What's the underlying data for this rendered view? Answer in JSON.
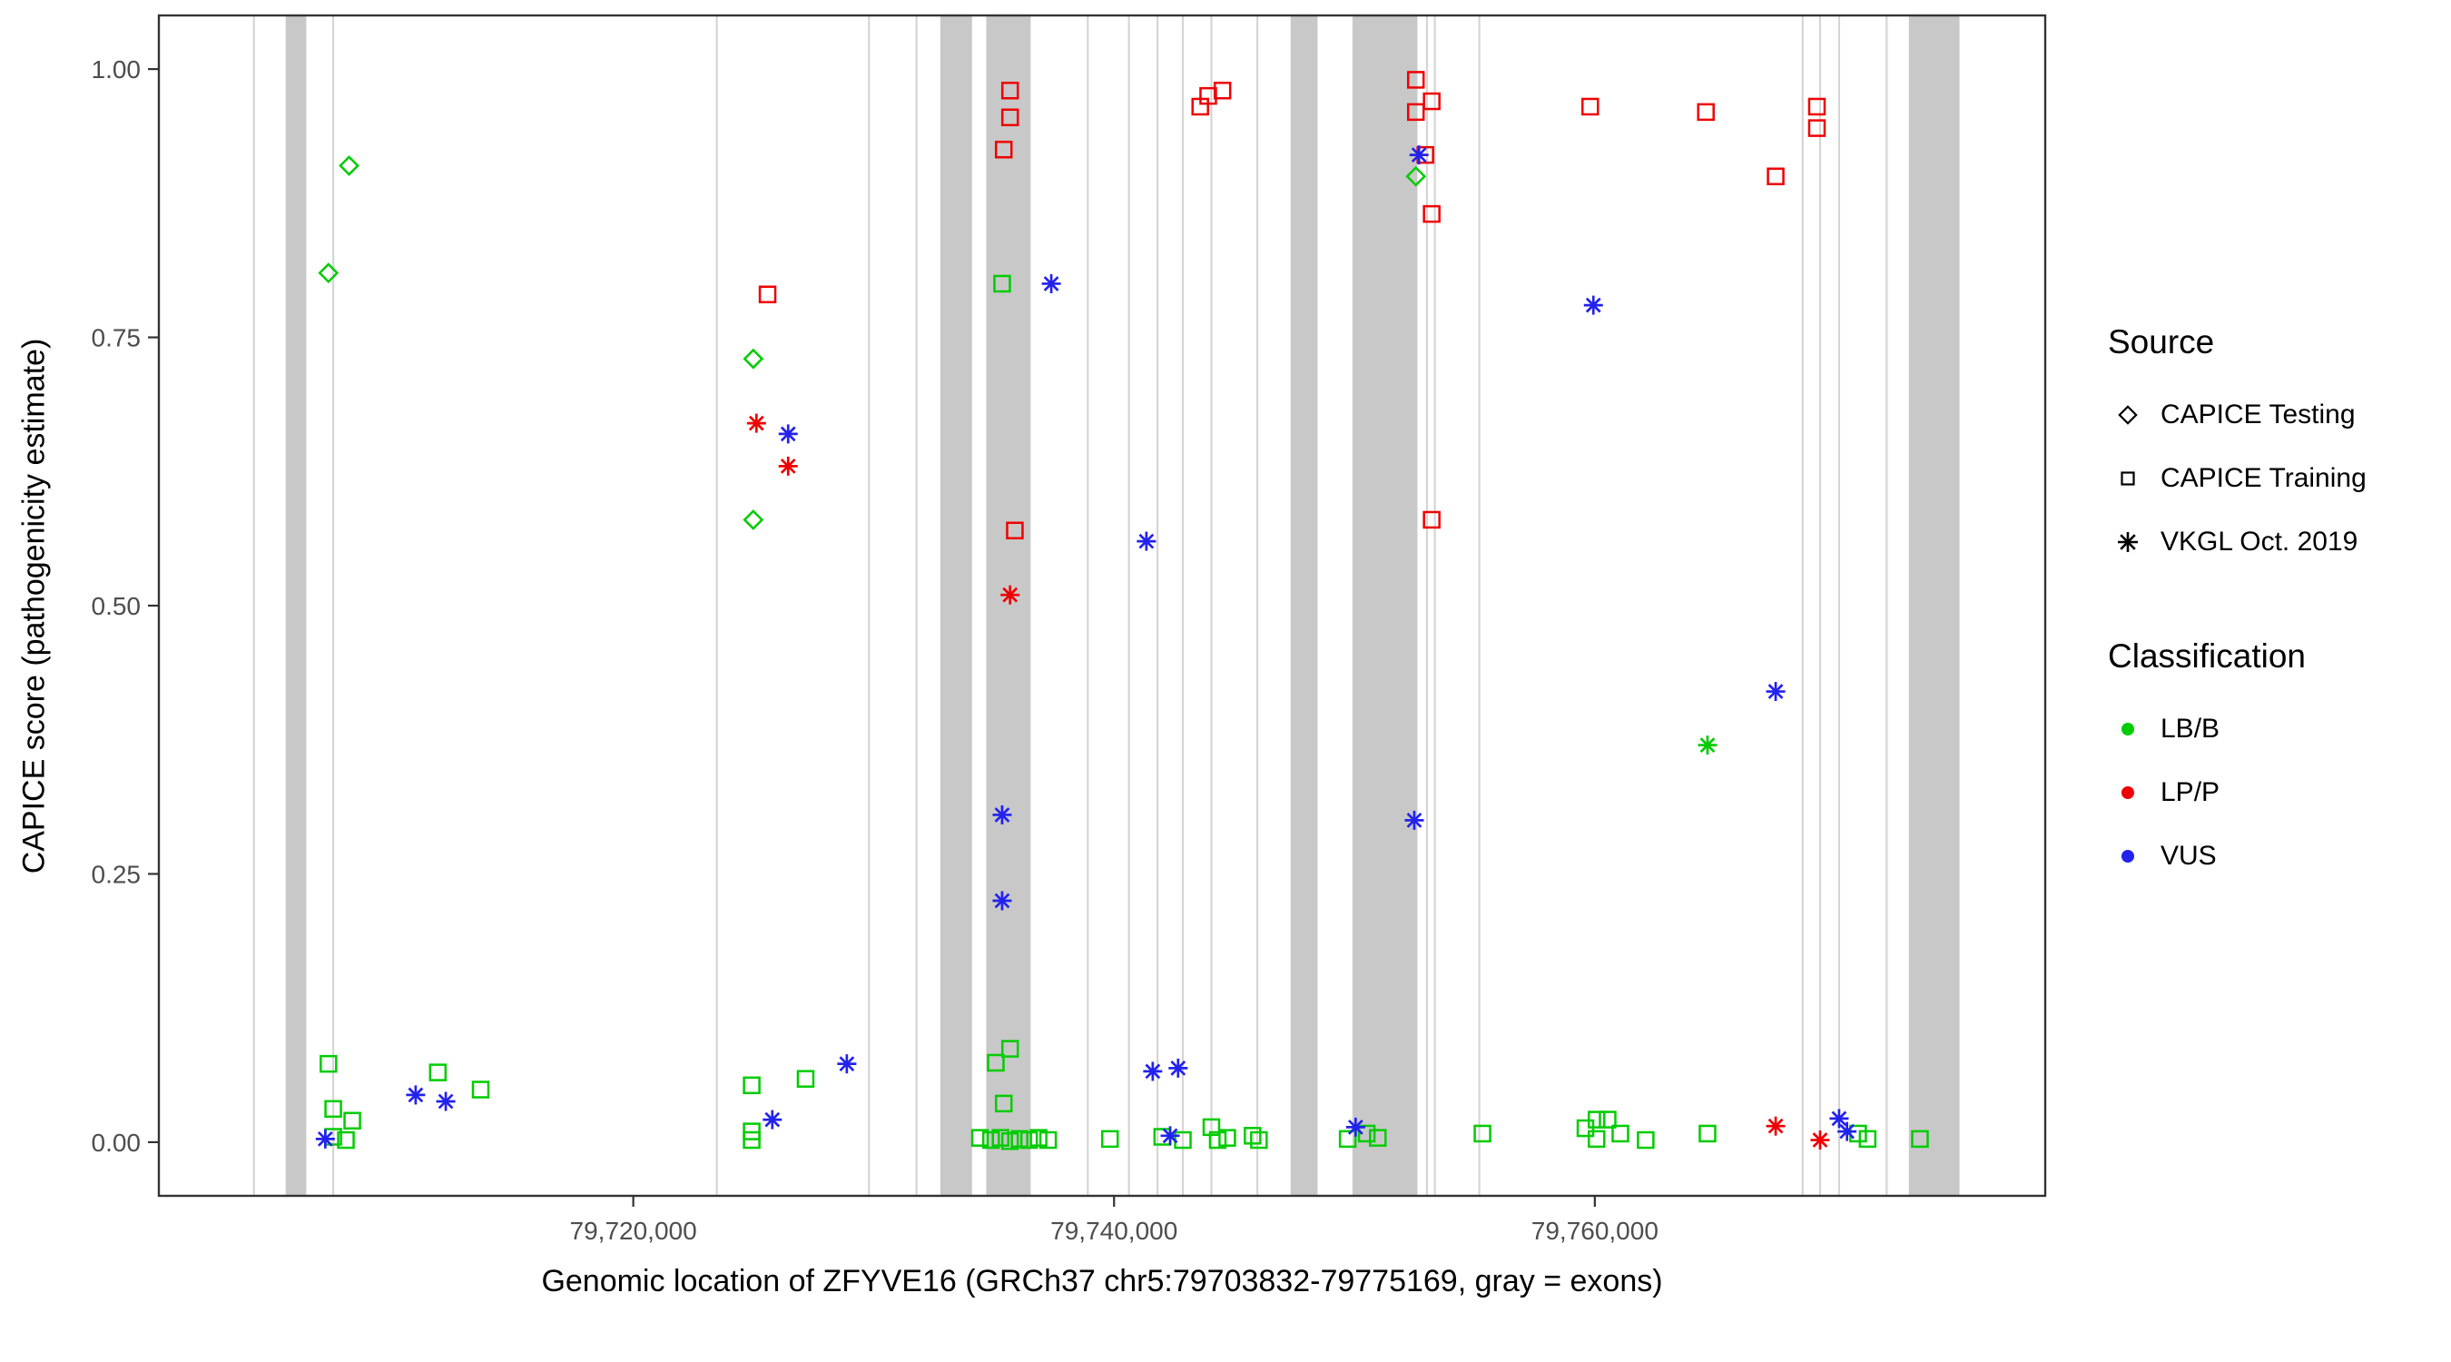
{
  "chart_data": {
    "type": "scatter",
    "title": "",
    "xlabel": "Genomic location of ZFYVE16 (GRCh37 chr5:79703832-79775169, gray = exons)",
    "ylabel": "CAPICE score (pathogenicity estimate)",
    "xlim": [
      79700265,
      79778736
    ],
    "ylim": [
      -0.05,
      1.05
    ],
    "grid": false,
    "exon_color": "#C8C8C8",
    "boundary_line_color": "#D5D5D5",
    "x_ticks": [
      {
        "value": 79720000,
        "label": "79,720,000"
      },
      {
        "value": 79740000,
        "label": "79,740,000"
      },
      {
        "value": 79760000,
        "label": "79,760,000"
      }
    ],
    "y_ticks": [
      {
        "value": 0.0,
        "label": "0.00"
      },
      {
        "value": 0.25,
        "label": "0.25"
      },
      {
        "value": 0.5,
        "label": "0.50"
      },
      {
        "value": 0.75,
        "label": "0.75"
      },
      {
        "value": 1.0,
        "label": "1.00"
      }
    ],
    "exons": [
      [
        79705540,
        79706397
      ],
      [
        79732773,
        79734092
      ],
      [
        79734685,
        79736532
      ],
      [
        79747346,
        79748467
      ],
      [
        79749917,
        79752621
      ],
      [
        79773063,
        79775169
      ]
    ],
    "boundary_lines": [
      79704221,
      79707518,
      79723476,
      79729806,
      79731784,
      79738906,
      79740620,
      79741807,
      79742862,
      79744049,
      79745961,
      79753017,
      79753346,
      79755193,
      79768645,
      79769370,
      79770161,
      79772140
    ],
    "series": [
      {
        "source": "CAPICE Testing",
        "classification": "LB/B",
        "shape": "diamond",
        "color": "#00CC00",
        "points": [
          [
            79708178,
            0.91
          ],
          [
            79707320,
            0.81
          ],
          [
            79724993,
            0.73
          ],
          [
            79724993,
            0.58
          ],
          [
            79752555,
            0.9
          ]
        ]
      },
      {
        "source": "CAPICE Training",
        "classification": "LB/B",
        "shape": "square",
        "color": "#00CC00",
        "points": [
          [
            79707320,
            0.073
          ],
          [
            79707518,
            0.031
          ],
          [
            79708310,
            0.02
          ],
          [
            79707518,
            0.005
          ],
          [
            79708046,
            0.002
          ],
          [
            79711870,
            0.065
          ],
          [
            79713651,
            0.049
          ],
          [
            79724927,
            0.053
          ],
          [
            79727169,
            0.059
          ],
          [
            79724927,
            0.01
          ],
          [
            79724927,
            0.002
          ],
          [
            79735345,
            0.8
          ],
          [
            79735675,
            0.087
          ],
          [
            79735081,
            0.074
          ],
          [
            79735411,
            0.036
          ],
          [
            79734421,
            0.004
          ],
          [
            79734883,
            0.002
          ],
          [
            79735279,
            0.004
          ],
          [
            79735675,
            0.001
          ],
          [
            79736070,
            0.003
          ],
          [
            79736466,
            0.002
          ],
          [
            79736862,
            0.004
          ],
          [
            79737257,
            0.002
          ],
          [
            79739829,
            0.003
          ],
          [
            79742005,
            0.005
          ],
          [
            79742862,
            0.002
          ],
          [
            79744049,
            0.014
          ],
          [
            79744313,
            0.002
          ],
          [
            79744708,
            0.004
          ],
          [
            79745763,
            0.006
          ],
          [
            79746027,
            0.002
          ],
          [
            79749720,
            0.003
          ],
          [
            79750511,
            0.008
          ],
          [
            79750972,
            0.004
          ],
          [
            79755325,
            0.008
          ],
          [
            79759610,
            0.013
          ],
          [
            79760072,
            0.021
          ],
          [
            79760533,
            0.021
          ],
          [
            79760072,
            0.003
          ],
          [
            79761061,
            0.008
          ],
          [
            79762116,
            0.002
          ],
          [
            79764687,
            0.008
          ],
          [
            79770952,
            0.008
          ],
          [
            79771347,
            0.003
          ],
          [
            79773524,
            0.003
          ]
        ]
      },
      {
        "source": "CAPICE Training",
        "classification": "LP/P",
        "shape": "square",
        "color": "#EE0000",
        "points": [
          [
            79725586,
            0.79
          ],
          [
            79735675,
            0.98
          ],
          [
            79735675,
            0.955
          ],
          [
            79735411,
            0.925
          ],
          [
            79735873,
            0.57
          ],
          [
            79743917,
            0.975
          ],
          [
            79744510,
            0.98
          ],
          [
            79743587,
            0.965
          ],
          [
            79752555,
            0.99
          ],
          [
            79752555,
            0.96
          ],
          [
            79753214,
            0.97
          ],
          [
            79752950,
            0.92
          ],
          [
            79753214,
            0.865
          ],
          [
            79753214,
            0.58
          ],
          [
            79759808,
            0.965
          ],
          [
            79764621,
            0.96
          ],
          [
            79769238,
            0.965
          ],
          [
            79769238,
            0.945
          ],
          [
            79767523,
            0.9
          ]
        ]
      },
      {
        "source": "VKGL Oct. 2019",
        "classification": "VUS",
        "shape": "asterisk",
        "color": "#2222EE",
        "points": [
          [
            79726443,
            0.66
          ],
          [
            79737389,
            0.8
          ],
          [
            79741345,
            0.56
          ],
          [
            79752687,
            0.92
          ],
          [
            79759940,
            0.78
          ],
          [
            79767523,
            0.42
          ],
          [
            79752489,
            0.3
          ],
          [
            79735345,
            0.305
          ],
          [
            79735345,
            0.225
          ],
          [
            79728883,
            0.073
          ],
          [
            79742664,
            0.069
          ],
          [
            79741609,
            0.066
          ],
          [
            79710947,
            0.044
          ],
          [
            79712200,
            0.038
          ],
          [
            79725784,
            0.021
          ],
          [
            79707188,
            0.003
          ],
          [
            79742334,
            0.006
          ],
          [
            79750049,
            0.014
          ],
          [
            79770161,
            0.022
          ],
          [
            79770490,
            0.01
          ]
        ]
      },
      {
        "source": "VKGL Oct. 2019",
        "classification": "LB/B",
        "shape": "asterisk",
        "color": "#00CC00",
        "points": [
          [
            79764687,
            0.37
          ]
        ]
      },
      {
        "source": "VKGL Oct. 2019",
        "classification": "LP/P",
        "shape": "asterisk",
        "color": "#EE0000",
        "points": [
          [
            79725124,
            0.67
          ],
          [
            79726443,
            0.63
          ],
          [
            79735675,
            0.51
          ],
          [
            79767523,
            0.015
          ],
          [
            79769370,
            0.002
          ]
        ]
      }
    ],
    "legend": {
      "position": "right",
      "source": {
        "title": "Source",
        "items": [
          {
            "label": "CAPICE Testing",
            "shape": "diamond"
          },
          {
            "label": "CAPICE Training",
            "shape": "square"
          },
          {
            "label": "VKGL Oct. 2019",
            "shape": "asterisk"
          }
        ]
      },
      "classification": {
        "title": "Classification",
        "items": [
          {
            "label": "LB/B",
            "color": "#00CC00"
          },
          {
            "label": "LP/P",
            "color": "#EE0000"
          },
          {
            "label": "VUS",
            "color": "#2222EE"
          }
        ]
      }
    }
  }
}
